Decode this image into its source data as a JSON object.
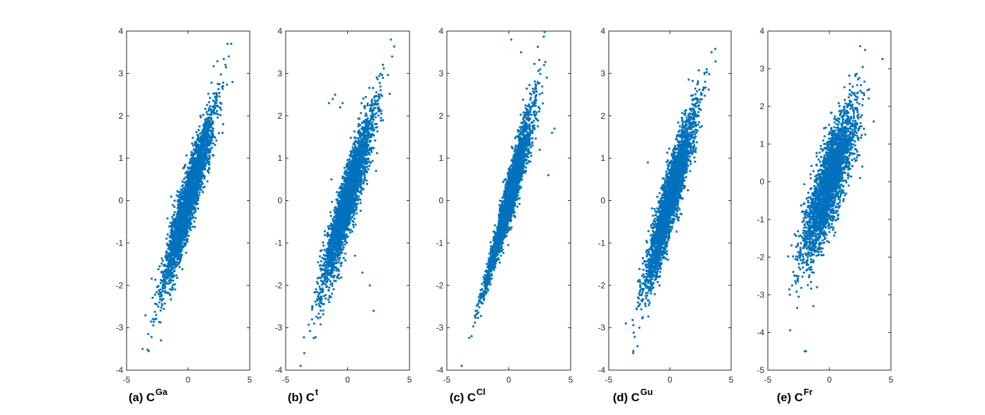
{
  "colors": {
    "marker": "#0072BD",
    "axis": "#262626"
  },
  "chart_data": [
    {
      "type": "scatter",
      "caption": {
        "main": "(a) C",
        "sup": "Ga"
      },
      "xlim": [
        -5,
        5
      ],
      "ylim": [
        -4,
        4
      ],
      "xticks": [
        "-5",
        "0",
        "5"
      ],
      "yticks": [
        "4",
        "3",
        "2",
        "1",
        "0",
        "-1",
        "-2",
        "-3",
        "-4"
      ],
      "grid": false,
      "cloud": {
        "n": 3200,
        "slope": 0.93,
        "noise": 0.36,
        "xsd": 1.0,
        "seed": 11
      },
      "points": [
        [
          3.5,
          3.7
        ],
        [
          3.2,
          3.7
        ],
        [
          3.3,
          3.4
        ],
        [
          2.8,
          1.6
        ],
        [
          -3.7,
          -3.5
        ],
        [
          -2.2,
          -3.3
        ],
        [
          3.6,
          2.8
        ],
        [
          -2.6,
          -2.7
        ]
      ]
    },
    {
      "type": "scatter",
      "caption": {
        "main": "(b) C",
        "sup": "t"
      },
      "xlim": [
        -5,
        5
      ],
      "ylim": [
        -4,
        4
      ],
      "xticks": [
        "-5",
        "0",
        "5"
      ],
      "yticks": [
        "4",
        "3",
        "2",
        "1",
        "0",
        "-1",
        "-2",
        "-3",
        "-4"
      ],
      "grid": false,
      "cloud": {
        "n": 3200,
        "slope": 0.92,
        "noise": 0.38,
        "xsd": 1.0,
        "seed": 23
      },
      "points": [
        [
          -1.2,
          2.4
        ],
        [
          -1.5,
          2.3
        ],
        [
          -0.4,
          2.3
        ],
        [
          -0.6,
          2.2
        ],
        [
          -1.0,
          2.5
        ],
        [
          2.1,
          -2.6
        ],
        [
          1.8,
          -2.0
        ],
        [
          1.2,
          -1.7
        ],
        [
          0.6,
          -1.3
        ],
        [
          -3.8,
          -3.9
        ],
        [
          -3.5,
          -3.6
        ],
        [
          3.5,
          3.8
        ],
        [
          3.6,
          3.4
        ],
        [
          2.3,
          0.7
        ],
        [
          -1.3,
          0.5
        ]
      ]
    },
    {
      "type": "scatter",
      "caption": {
        "main": "(c) C",
        "sup": "Cl"
      },
      "xlim": [
        -5,
        5
      ],
      "ylim": [
        -4,
        4
      ],
      "xticks": [
        "-5",
        "0",
        "5"
      ],
      "yticks": [
        "4",
        "3",
        "2",
        "1",
        "0",
        "-1",
        "-2",
        "-3",
        "-4"
      ],
      "grid": false,
      "cloud": {
        "n": 3200,
        "slope": 1.05,
        "noise": 0.28,
        "xsd": 0.95,
        "seed": 37,
        "hetero": 0.18
      },
      "points": [
        [
          0.2,
          3.8
        ],
        [
          1.0,
          3.5
        ],
        [
          3.7,
          1.7
        ],
        [
          3.5,
          1.6
        ],
        [
          -3.8,
          -3.9
        ],
        [
          -3.0,
          -3.2
        ],
        [
          2.5,
          1.2
        ],
        [
          3.2,
          0.6
        ]
      ]
    },
    {
      "type": "scatter",
      "caption": {
        "main": "(d) C",
        "sup": "Gu"
      },
      "xlim": [
        -5,
        5
      ],
      "ylim": [
        -4,
        4
      ],
      "xticks": [
        "-5",
        "0",
        "5"
      ],
      "yticks": [
        "4",
        "3",
        "2",
        "1",
        "0",
        "-1",
        "-2",
        "-3",
        "-4"
      ],
      "grid": false,
      "cloud": {
        "n": 3200,
        "slope": 0.95,
        "noise": 0.4,
        "xsd": 1.0,
        "seed": 51
      },
      "points": [
        [
          3.4,
          3.5
        ],
        [
          -3.0,
          -3.6
        ],
        [
          -3.6,
          -2.9
        ],
        [
          3.0,
          3.1
        ],
        [
          -1.8,
          0.9
        ],
        [
          -2.5,
          -3.0
        ]
      ]
    },
    {
      "type": "scatter",
      "caption": {
        "main": "(e) C",
        "sup": "Fr"
      },
      "xlim": [
        -5,
        5
      ],
      "ylim": [
        -5,
        4
      ],
      "xticks": [
        "-5",
        "0",
        "5"
      ],
      "yticks": [
        "4",
        "3",
        "2",
        "1",
        "0",
        "-1",
        "-2",
        "-3",
        "-4",
        "-5"
      ],
      "grid": false,
      "cloud": {
        "n": 3000,
        "slope": 0.78,
        "noise": 0.55,
        "xsd": 1.05,
        "seed": 67
      },
      "points": [
        [
          2.5,
          3.6
        ],
        [
          2.9,
          3.5
        ],
        [
          -2.0,
          -4.5
        ],
        [
          -1.9,
          -4.5
        ],
        [
          3.6,
          1.6
        ],
        [
          -3.2,
          -3.0
        ],
        [
          -1.3,
          -3.3
        ],
        [
          2.5,
          0.1
        ]
      ]
    }
  ]
}
